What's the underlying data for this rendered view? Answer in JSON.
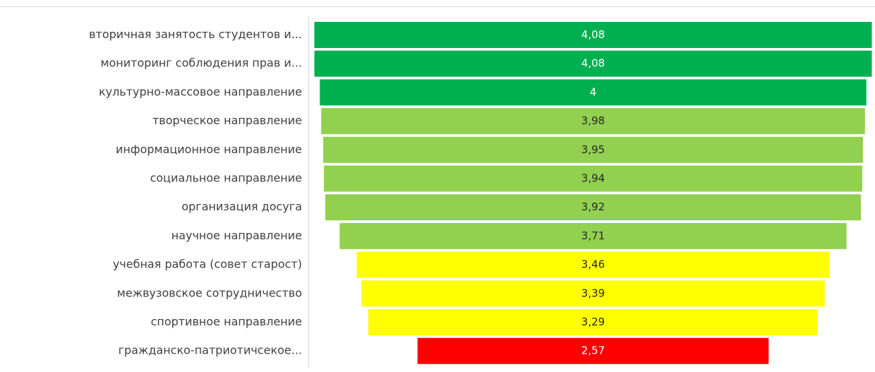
{
  "chart_data": {
    "type": "funnel",
    "categories": [
      "вторичная занятость студентов и...",
      "мониторинг соблюдения прав и...",
      "культурно-массовое направление",
      "творческое направление",
      "информационное направление",
      "социальное направление",
      "организация досуга",
      "научное направление",
      "учебная работа (совет старост)",
      "межвузовское сотрудничество",
      "спортивное направление",
      "гражданско-патриотичсекое..."
    ],
    "values": [
      4.08,
      4.08,
      4,
      3.98,
      3.95,
      3.94,
      3.92,
      3.71,
      3.46,
      3.39,
      3.29,
      2.57
    ],
    "value_labels": [
      "4,08",
      "4,08",
      "4",
      "3,98",
      "3,95",
      "3,94",
      "3,92",
      "3,71",
      "3,46",
      "3,39",
      "3,29",
      "2,57"
    ],
    "colors": [
      "#00b050",
      "#00b050",
      "#00b050",
      "#92d050",
      "#92d050",
      "#92d050",
      "#92d050",
      "#92d050",
      "#ffff00",
      "#ffff00",
      "#ffff00",
      "#ff0000"
    ]
  }
}
